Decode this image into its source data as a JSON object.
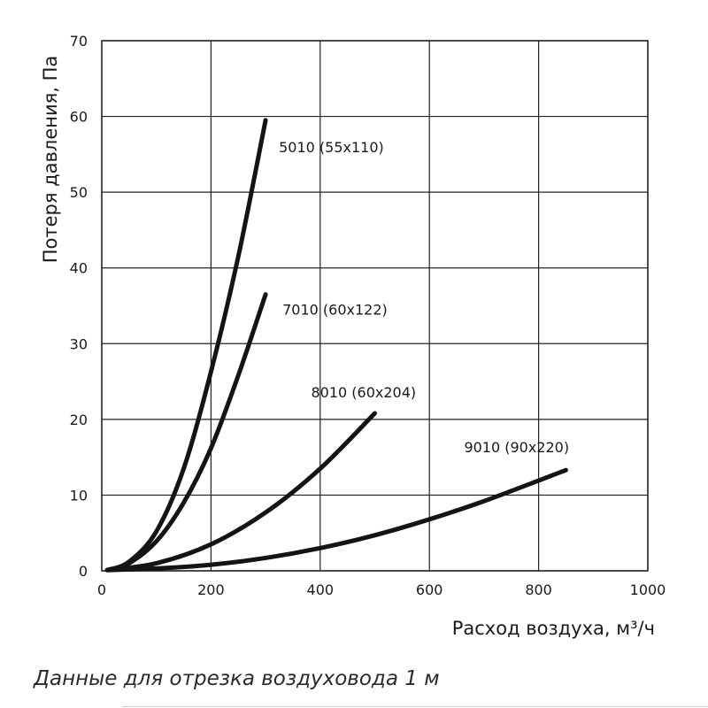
{
  "chart_data": {
    "type": "line",
    "xlabel": "Расход воздуха, м³/ч",
    "ylabel": "Потеря давления, Па",
    "xlim": [
      0,
      1000
    ],
    "ylim": [
      0,
      70
    ],
    "xticks": [
      0,
      200,
      400,
      600,
      800,
      1000
    ],
    "yticks": [
      0,
      10,
      20,
      30,
      40,
      50,
      60,
      70
    ],
    "grid": true,
    "series": [
      {
        "name": "5010 (55x110)",
        "x": [
          10,
          50,
          100,
          150,
          200,
          250,
          300
        ],
        "y": [
          0.1,
          1.2,
          5.2,
          13.5,
          26.3,
          41.5,
          59.5
        ]
      },
      {
        "name": "7010 (60x122)",
        "x": [
          10,
          50,
          100,
          150,
          200,
          250,
          300
        ],
        "y": [
          0.1,
          1.0,
          3.9,
          9.0,
          16.2,
          25.8,
          36.5
        ]
      },
      {
        "name": "8010 (60x204)",
        "x": [
          10,
          100,
          200,
          300,
          400,
          500
        ],
        "y": [
          0.1,
          1.0,
          3.5,
          7.7,
          13.5,
          20.8
        ]
      },
      {
        "name": "9010 (90x220)",
        "x": [
          10,
          100,
          200,
          300,
          400,
          500,
          600,
          700,
          850
        ],
        "y": [
          0.1,
          0.3,
          0.8,
          1.7,
          3.0,
          4.7,
          6.8,
          9.2,
          13.3
        ]
      }
    ]
  },
  "caption": "Данные для отрезка воздуховода 1 м"
}
